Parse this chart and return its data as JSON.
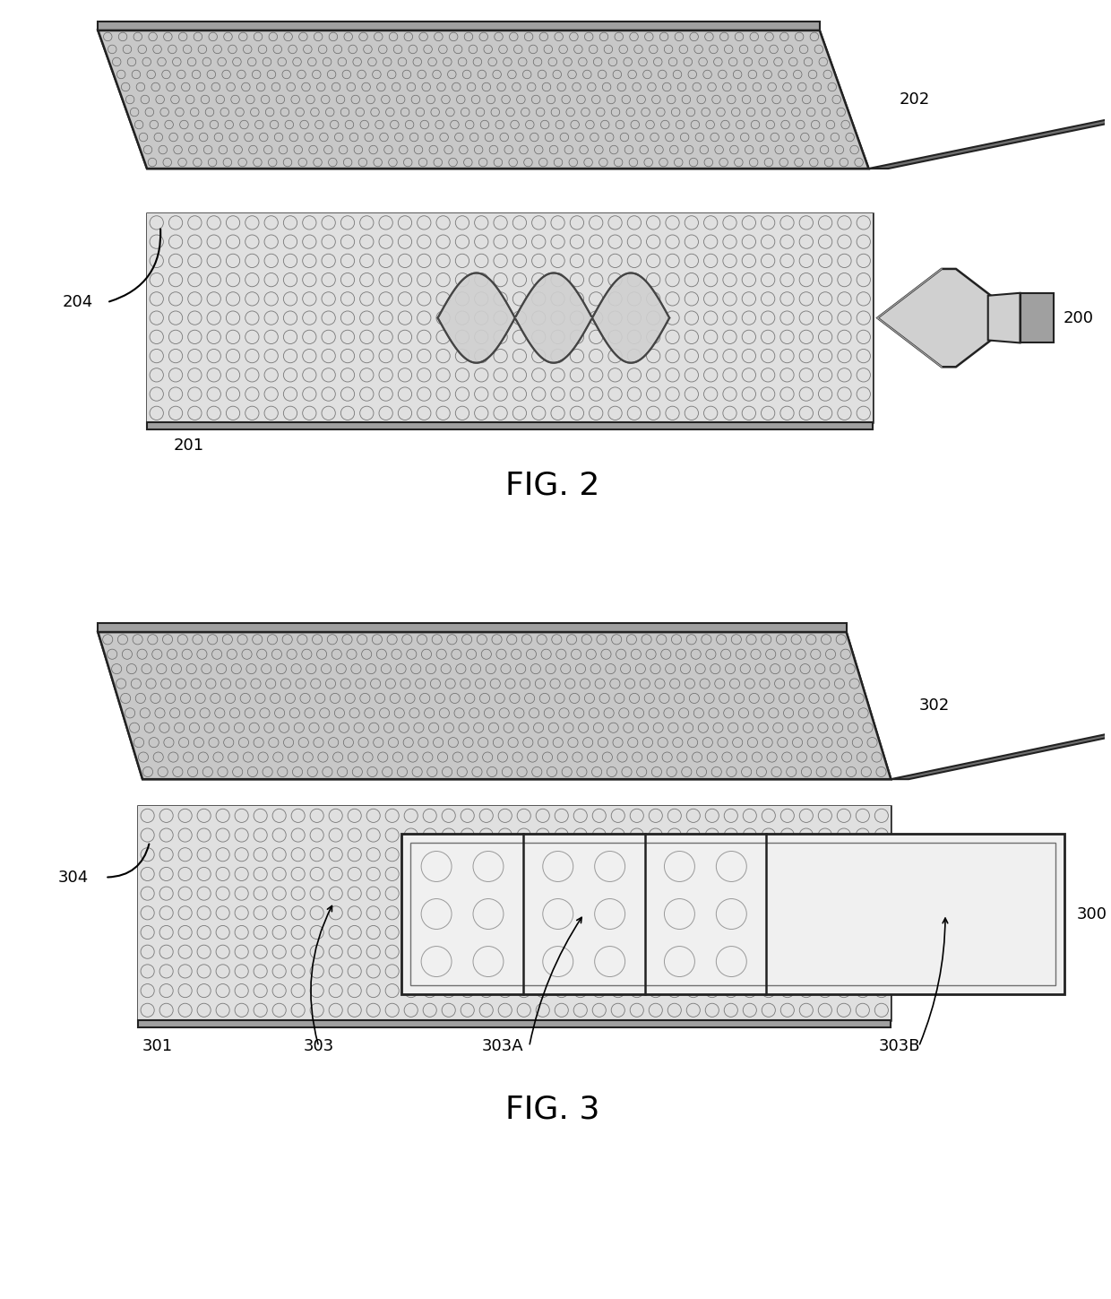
{
  "bg_color": "#ffffff",
  "fig_width": 12.4,
  "fig_height": 14.49,
  "fig2_label": "FIG. 2",
  "fig3_label": "FIG. 3",
  "label_202": "202",
  "label_200": "200",
  "label_201": "201",
  "label_204": "204",
  "label_302": "302",
  "label_300": "300",
  "label_301": "301",
  "label_304": "304",
  "label_303": "303",
  "label_303A": "303A",
  "label_303B": "303B",
  "text_color": "#000000",
  "fig_label_fontsize": 26,
  "ref_label_fontsize": 13,
  "gray_light": "#d0d0d0",
  "gray_medium": "#a0a0a0",
  "gray_dark": "#707070",
  "edge_color": "#222222"
}
